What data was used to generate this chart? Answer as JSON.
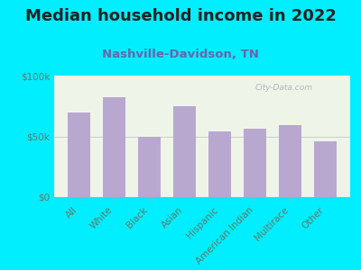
{
  "title": "Median household income in 2022",
  "subtitle": "Nashville-Davidson, TN",
  "categories": [
    "All",
    "White",
    "Black",
    "Asian",
    "Hispanic",
    "American Indian",
    "Multirace",
    "Other"
  ],
  "values": [
    70000,
    82000,
    50000,
    75000,
    54000,
    56000,
    59000,
    46000
  ],
  "bar_color": "#b8a8d0",
  "background_outer": "#00eeff",
  "background_inner": "#eef5e8",
  "title_color": "#222222",
  "subtitle_color": "#6666aa",
  "axis_label_color": "#667766",
  "ytick_labels": [
    "$0",
    "$50k",
    "$100k"
  ],
  "ytick_values": [
    0,
    50000,
    100000
  ],
  "ylim": [
    0,
    100000
  ],
  "watermark": "City-Data.com",
  "title_fontsize": 13,
  "subtitle_fontsize": 9.5,
  "tick_fontsize": 7.5
}
